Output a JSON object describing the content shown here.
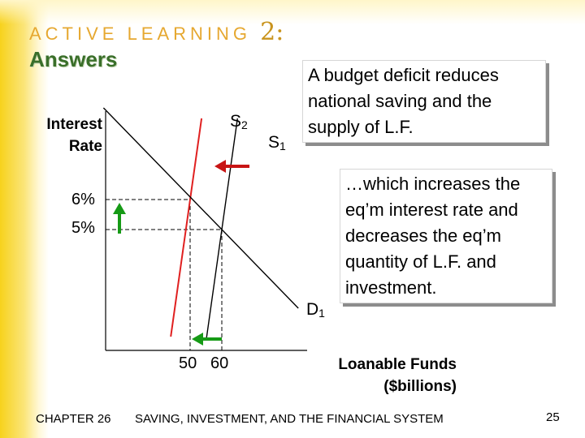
{
  "slide": {
    "title_text": "ACTIVE LEARNING",
    "title_num": "2:",
    "subtitle": "Answers",
    "note1": "A budget deficit reduces national saving and the supply of L.F.",
    "note2": "…which increases the eq’m interest rate and decreases the eq’m quantity of L.F. and investment.",
    "footer_chapter": "CHAPTER 26",
    "footer_text": "SAVING, INVESTMENT, AND THE FINANCIAL SYSTEM",
    "page_number": "25"
  },
  "colors": {
    "accent": "#e6a830",
    "answers_green": "#3a6f2a",
    "shifted_supply": "#e02020",
    "arrow_red": "#c81414",
    "arrow_green": "#169a16",
    "original_curve": "#000000"
  },
  "chart_data": {
    "type": "line",
    "xlabel": "Loanable Funds\n($billions)",
    "ylabel": "Interest\nRate",
    "x_ticks": [
      {
        "value": 50,
        "label": "50"
      },
      {
        "value": 60,
        "label": "60"
      }
    ],
    "y_ticks": [
      {
        "value": 6,
        "label": "6%"
      },
      {
        "value": 5,
        "label": "5%"
      }
    ],
    "curves": [
      {
        "name": "S",
        "sub": "1",
        "role": "supply_original",
        "color": "#000000"
      },
      {
        "name": "S",
        "sub": "2",
        "role": "supply_shifted",
        "color": "#e02020"
      },
      {
        "name": "D",
        "sub": "1",
        "role": "demand",
        "color": "#000000"
      }
    ],
    "equilibria": [
      {
        "label": "original",
        "quantity": 60,
        "rate": 5
      },
      {
        "label": "new",
        "quantity": 50,
        "rate": 6
      }
    ],
    "arrows": [
      {
        "meaning": "supply shifts left",
        "direction": "left",
        "color": "#c81414"
      },
      {
        "meaning": "interest rate rises",
        "direction": "up",
        "color": "#169a16"
      },
      {
        "meaning": "quantity falls",
        "direction": "left",
        "color": "#169a16"
      }
    ],
    "grid": false,
    "guides": "dashed"
  }
}
